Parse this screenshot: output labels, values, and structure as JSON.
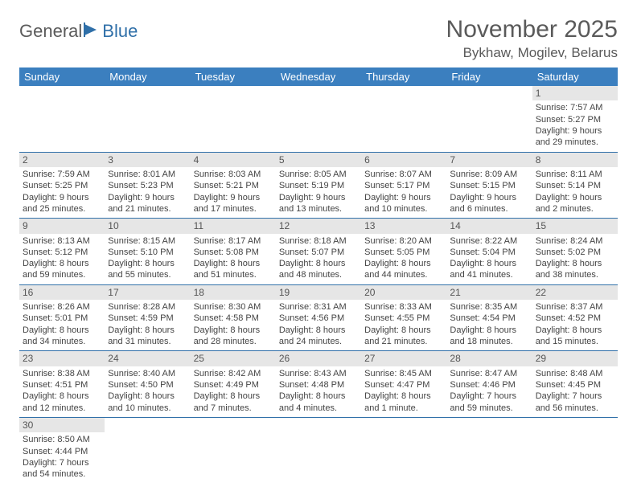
{
  "logo": {
    "part1": "General",
    "part2": "Blue"
  },
  "title": "November 2025",
  "location": "Bykhaw, Mogilev, Belarus",
  "weekday_header_bg": "#3b7fbf",
  "weekday_header_fg": "#ffffff",
  "daynum_bg": "#e6e6e6",
  "border_color": "#2f6fa8",
  "weekdays": [
    "Sunday",
    "Monday",
    "Tuesday",
    "Wednesday",
    "Thursday",
    "Friday",
    "Saturday"
  ],
  "weeks": [
    [
      null,
      null,
      null,
      null,
      null,
      null,
      {
        "n": "1",
        "sunrise": "Sunrise: 7:57 AM",
        "sunset": "Sunset: 5:27 PM",
        "daylight": "Daylight: 9 hours and 29 minutes."
      }
    ],
    [
      {
        "n": "2",
        "sunrise": "Sunrise: 7:59 AM",
        "sunset": "Sunset: 5:25 PM",
        "daylight": "Daylight: 9 hours and 25 minutes."
      },
      {
        "n": "3",
        "sunrise": "Sunrise: 8:01 AM",
        "sunset": "Sunset: 5:23 PM",
        "daylight": "Daylight: 9 hours and 21 minutes."
      },
      {
        "n": "4",
        "sunrise": "Sunrise: 8:03 AM",
        "sunset": "Sunset: 5:21 PM",
        "daylight": "Daylight: 9 hours and 17 minutes."
      },
      {
        "n": "5",
        "sunrise": "Sunrise: 8:05 AM",
        "sunset": "Sunset: 5:19 PM",
        "daylight": "Daylight: 9 hours and 13 minutes."
      },
      {
        "n": "6",
        "sunrise": "Sunrise: 8:07 AM",
        "sunset": "Sunset: 5:17 PM",
        "daylight": "Daylight: 9 hours and 10 minutes."
      },
      {
        "n": "7",
        "sunrise": "Sunrise: 8:09 AM",
        "sunset": "Sunset: 5:15 PM",
        "daylight": "Daylight: 9 hours and 6 minutes."
      },
      {
        "n": "8",
        "sunrise": "Sunrise: 8:11 AM",
        "sunset": "Sunset: 5:14 PM",
        "daylight": "Daylight: 9 hours and 2 minutes."
      }
    ],
    [
      {
        "n": "9",
        "sunrise": "Sunrise: 8:13 AM",
        "sunset": "Sunset: 5:12 PM",
        "daylight": "Daylight: 8 hours and 59 minutes."
      },
      {
        "n": "10",
        "sunrise": "Sunrise: 8:15 AM",
        "sunset": "Sunset: 5:10 PM",
        "daylight": "Daylight: 8 hours and 55 minutes."
      },
      {
        "n": "11",
        "sunrise": "Sunrise: 8:17 AM",
        "sunset": "Sunset: 5:08 PM",
        "daylight": "Daylight: 8 hours and 51 minutes."
      },
      {
        "n": "12",
        "sunrise": "Sunrise: 8:18 AM",
        "sunset": "Sunset: 5:07 PM",
        "daylight": "Daylight: 8 hours and 48 minutes."
      },
      {
        "n": "13",
        "sunrise": "Sunrise: 8:20 AM",
        "sunset": "Sunset: 5:05 PM",
        "daylight": "Daylight: 8 hours and 44 minutes."
      },
      {
        "n": "14",
        "sunrise": "Sunrise: 8:22 AM",
        "sunset": "Sunset: 5:04 PM",
        "daylight": "Daylight: 8 hours and 41 minutes."
      },
      {
        "n": "15",
        "sunrise": "Sunrise: 8:24 AM",
        "sunset": "Sunset: 5:02 PM",
        "daylight": "Daylight: 8 hours and 38 minutes."
      }
    ],
    [
      {
        "n": "16",
        "sunrise": "Sunrise: 8:26 AM",
        "sunset": "Sunset: 5:01 PM",
        "daylight": "Daylight: 8 hours and 34 minutes."
      },
      {
        "n": "17",
        "sunrise": "Sunrise: 8:28 AM",
        "sunset": "Sunset: 4:59 PM",
        "daylight": "Daylight: 8 hours and 31 minutes."
      },
      {
        "n": "18",
        "sunrise": "Sunrise: 8:30 AM",
        "sunset": "Sunset: 4:58 PM",
        "daylight": "Daylight: 8 hours and 28 minutes."
      },
      {
        "n": "19",
        "sunrise": "Sunrise: 8:31 AM",
        "sunset": "Sunset: 4:56 PM",
        "daylight": "Daylight: 8 hours and 24 minutes."
      },
      {
        "n": "20",
        "sunrise": "Sunrise: 8:33 AM",
        "sunset": "Sunset: 4:55 PM",
        "daylight": "Daylight: 8 hours and 21 minutes."
      },
      {
        "n": "21",
        "sunrise": "Sunrise: 8:35 AM",
        "sunset": "Sunset: 4:54 PM",
        "daylight": "Daylight: 8 hours and 18 minutes."
      },
      {
        "n": "22",
        "sunrise": "Sunrise: 8:37 AM",
        "sunset": "Sunset: 4:52 PM",
        "daylight": "Daylight: 8 hours and 15 minutes."
      }
    ],
    [
      {
        "n": "23",
        "sunrise": "Sunrise: 8:38 AM",
        "sunset": "Sunset: 4:51 PM",
        "daylight": "Daylight: 8 hours and 12 minutes."
      },
      {
        "n": "24",
        "sunrise": "Sunrise: 8:40 AM",
        "sunset": "Sunset: 4:50 PM",
        "daylight": "Daylight: 8 hours and 10 minutes."
      },
      {
        "n": "25",
        "sunrise": "Sunrise: 8:42 AM",
        "sunset": "Sunset: 4:49 PM",
        "daylight": "Daylight: 8 hours and 7 minutes."
      },
      {
        "n": "26",
        "sunrise": "Sunrise: 8:43 AM",
        "sunset": "Sunset: 4:48 PM",
        "daylight": "Daylight: 8 hours and 4 minutes."
      },
      {
        "n": "27",
        "sunrise": "Sunrise: 8:45 AM",
        "sunset": "Sunset: 4:47 PM",
        "daylight": "Daylight: 8 hours and 1 minute."
      },
      {
        "n": "28",
        "sunrise": "Sunrise: 8:47 AM",
        "sunset": "Sunset: 4:46 PM",
        "daylight": "Daylight: 7 hours and 59 minutes."
      },
      {
        "n": "29",
        "sunrise": "Sunrise: 8:48 AM",
        "sunset": "Sunset: 4:45 PM",
        "daylight": "Daylight: 7 hours and 56 minutes."
      }
    ],
    [
      {
        "n": "30",
        "sunrise": "Sunrise: 8:50 AM",
        "sunset": "Sunset: 4:44 PM",
        "daylight": "Daylight: 7 hours and 54 minutes."
      },
      null,
      null,
      null,
      null,
      null,
      null
    ]
  ]
}
